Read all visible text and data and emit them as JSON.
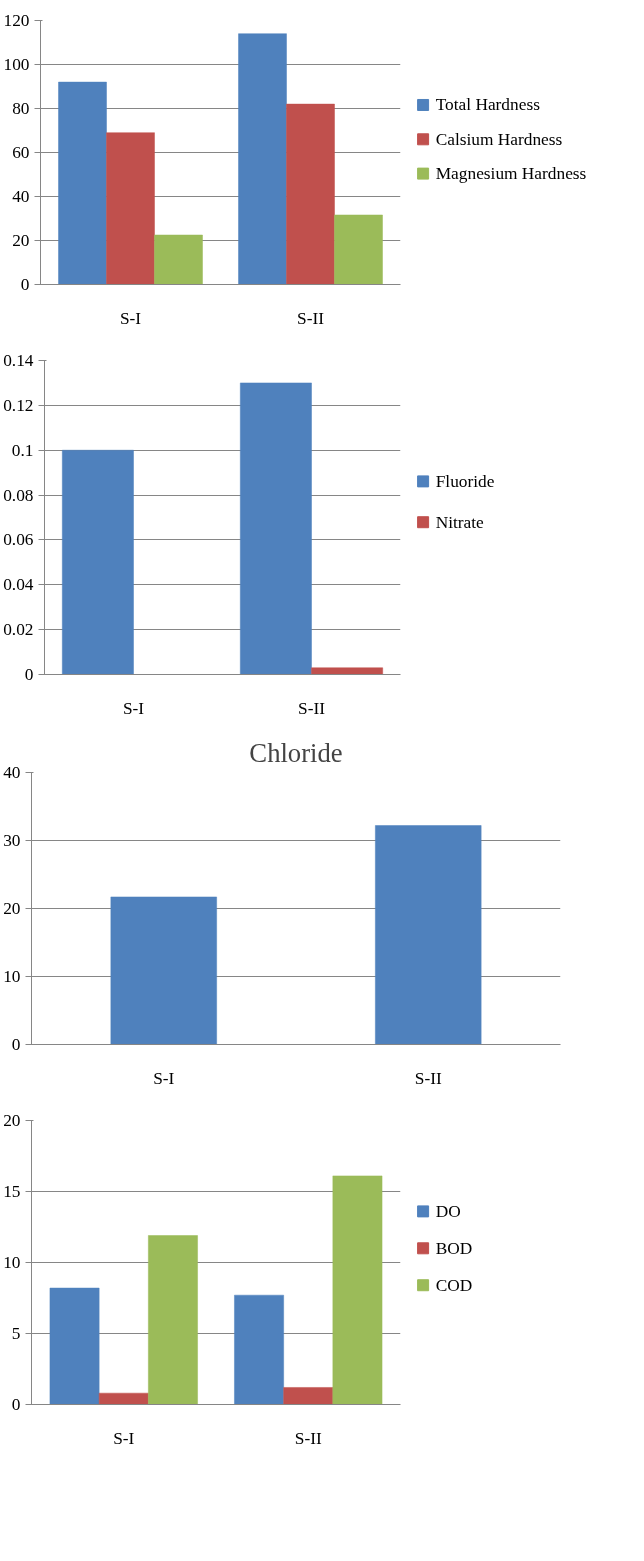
{
  "chart_data": [
    {
      "type": "bar",
      "categories": [
        "S-I",
        "S-II"
      ],
      "series": [
        {
          "name": "Total Hardness",
          "color": "#4f81bd",
          "values": [
            92,
            114
          ]
        },
        {
          "name": "Calsium Hardness",
          "color": "#c0504d",
          "values": [
            69,
            82
          ]
        },
        {
          "name": "Magnesium Hardness",
          "color": "#9bbb59",
          "values": [
            22.5,
            31.6
          ]
        }
      ],
      "ylim": [
        0,
        120
      ],
      "yticks": [
        0,
        20,
        40,
        60,
        80,
        100,
        120
      ],
      "grid": "y",
      "legend": "right"
    },
    {
      "type": "bar",
      "categories": [
        "S-I",
        "S-II"
      ],
      "series": [
        {
          "name": "Fluoride",
          "color": "#4f81bd",
          "values": [
            0.1,
            0.13
          ]
        },
        {
          "name": "Nitrate",
          "color": "#c0504d",
          "values": [
            0,
            0.003
          ]
        }
      ],
      "ylim": [
        0,
        0.14
      ],
      "yticks": [
        0,
        0.02,
        0.04,
        0.06,
        0.08,
        0.1,
        0.12,
        0.14
      ],
      "grid": "y",
      "legend": "right"
    },
    {
      "type": "bar",
      "title": "Chloride",
      "categories": [
        "S-I",
        "S-II"
      ],
      "series": [
        {
          "color": "#4f81bd",
          "values": [
            21.7,
            32.2
          ]
        }
      ],
      "ylim": [
        0,
        40
      ],
      "yticks": [
        0,
        10,
        20,
        30,
        40
      ],
      "grid": "y",
      "legend": false
    },
    {
      "type": "bar",
      "categories": [
        "S-I",
        "S-II"
      ],
      "series": [
        {
          "name": "DO",
          "color": "#4f81bd",
          "values": [
            8.2,
            7.7
          ]
        },
        {
          "name": "BOD",
          "color": "#c0504d",
          "values": [
            0.8,
            1.2
          ]
        },
        {
          "name": "COD",
          "color": "#9bbb59",
          "values": [
            11.9,
            16.1
          ]
        }
      ],
      "ylim": [
        0,
        20
      ],
      "yticks": [
        0,
        5,
        10,
        15,
        20
      ],
      "grid": "y",
      "legend": "right"
    }
  ]
}
